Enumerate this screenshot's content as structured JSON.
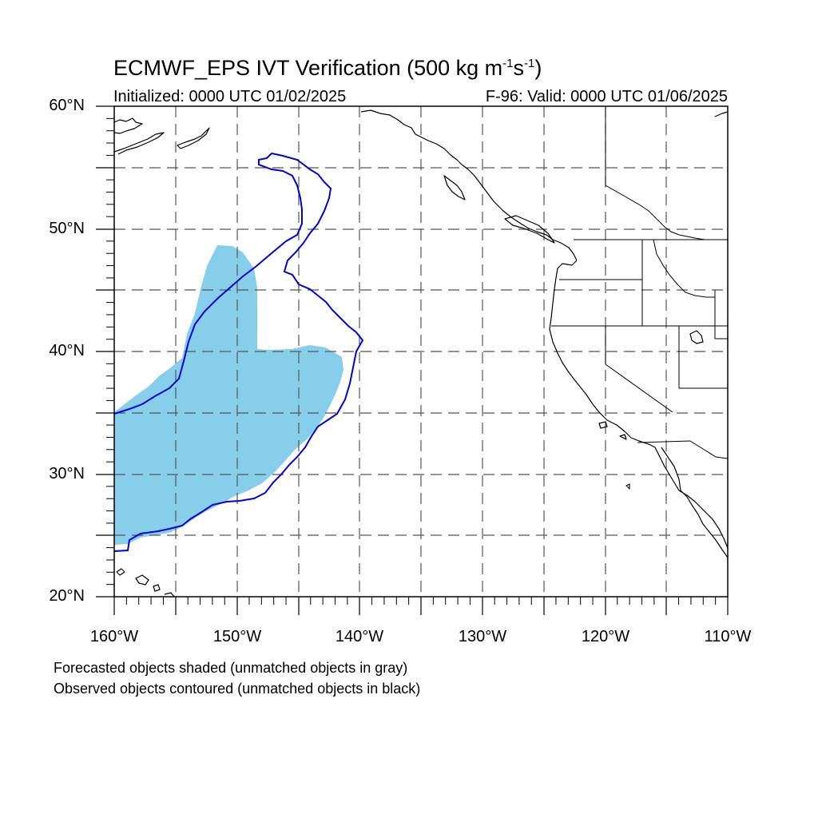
{
  "title": {
    "main": "ECMWF_EPS IVT Verification (500 kg m",
    "exp1": "-1",
    "mid": "s",
    "exp2": "-1",
    "end": ")"
  },
  "subtitle_left": "Initialized: 0000 UTC 01/02/2025",
  "subtitle_right": "F-96: Valid: 0000 UTC 01/06/2025",
  "lat_labels": [
    "60°N",
    "50°N",
    "40°N",
    "30°N",
    "20°N"
  ],
  "lon_labels": [
    "160°W",
    "150°W",
    "140°W",
    "130°W",
    "120°W",
    "110°W"
  ],
  "captions": [
    "Forecasted objects shaded (unmatched objects in gray)",
    "Observed objects contoured (unmatched objects in black)"
  ],
  "colors": {
    "forecast_fill": "#87ceeb",
    "observed_contour": "#0000dd",
    "coastline": "#000000",
    "grid": "#555555"
  },
  "map_extent": {
    "lon": [
      -160,
      -110
    ],
    "lat": [
      20,
      60
    ]
  }
}
